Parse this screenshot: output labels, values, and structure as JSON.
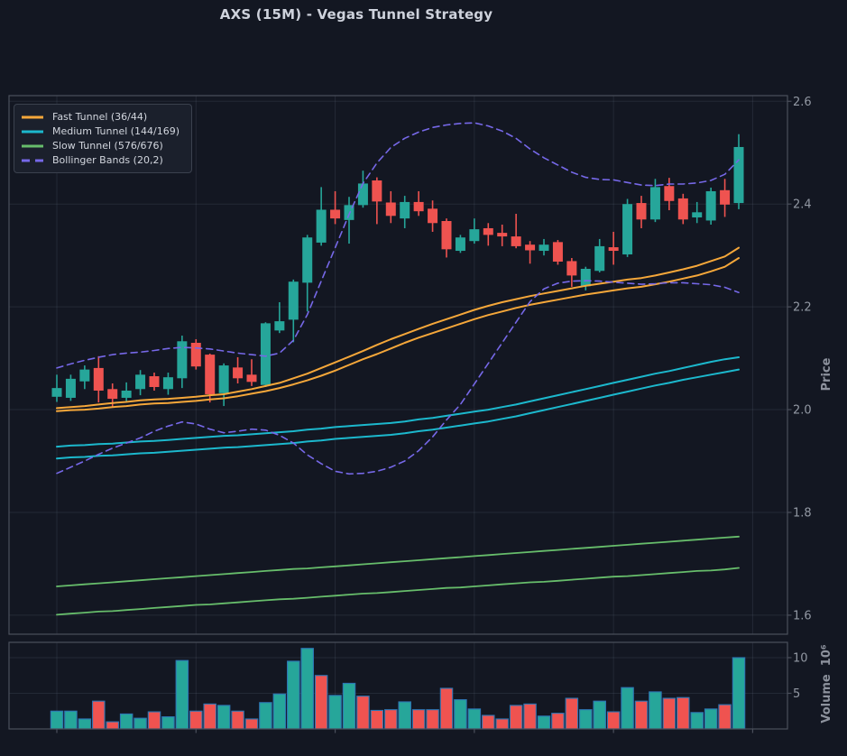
{
  "title": "AXS (15M) - Vegas Tunnel Strategy",
  "legend": {
    "items": [
      {
        "label": "Fast Tunnel (36/44)",
        "color": "#f5a73a",
        "dashed": false
      },
      {
        "label": "Medium Tunnel (144/169)",
        "color": "#1cb8cd",
        "dashed": false
      },
      {
        "label": "Slow Tunnel (576/676)",
        "color": "#67bd6b",
        "dashed": false
      },
      {
        "label": "Bollinger Bands (20,2)",
        "color": "#7668e8",
        "dashed": true
      }
    ]
  },
  "price_axis": {
    "label": "Price",
    "tick_labels": [
      "2.6",
      "2.4",
      "2.2",
      "2.0",
      "1.8",
      "1.6"
    ],
    "tick_values": [
      2.6,
      2.4,
      2.2,
      2.0,
      1.8,
      1.6
    ]
  },
  "volume_axis": {
    "label": "Volume",
    "scale_label": "10⁶",
    "tick_labels": [
      "10",
      "5"
    ],
    "tick_values": [
      10,
      5
    ]
  },
  "colors": {
    "background": "#131722",
    "panel_border": "#4b505c",
    "grid": "rgba(125,135,155,0.16)",
    "tick_text": "#9298a3",
    "title_text": "#ced2dc",
    "up": "#26a69a",
    "down": "#ef5350",
    "volume_edge": "#2d76b5",
    "fast_tunnel": "#f5a73a",
    "medium_tunnel": "#1cb8cd",
    "slow_tunnel": "#67bd6b",
    "bollinger": "#7668e8"
  },
  "chart_data": {
    "type": "candlestick",
    "title": "AXS (15M) - Vegas Tunnel Strategy",
    "symbol": "AXS",
    "timeframe": "15M",
    "strategy": "Vegas Tunnel Strategy",
    "price_ylim": [
      1.563,
      2.611
    ],
    "volume_ylim": [
      0,
      12.15
    ],
    "volume_unit": 1000000,
    "x_tick_indices": [
      0,
      10,
      20,
      30,
      40,
      50
    ],
    "grid": true,
    "legend_position": "upper left",
    "candles_note": "each candle: [open, high, low, close, volume_millions, volume_bar_color(u=teal,d=red)]",
    "candles": [
      [
        2.025,
        2.068,
        2.015,
        2.042,
        2.5,
        "u"
      ],
      [
        2.023,
        2.068,
        2.017,
        2.06,
        2.5,
        "u"
      ],
      [
        2.055,
        2.086,
        2.04,
        2.078,
        1.4,
        "u"
      ],
      [
        2.081,
        2.104,
        2.014,
        2.037,
        3.9,
        "d"
      ],
      [
        2.04,
        2.051,
        2.005,
        2.021,
        1.0,
        "d"
      ],
      [
        2.023,
        2.053,
        2.014,
        2.037,
        2.1,
        "u"
      ],
      [
        2.04,
        2.077,
        2.028,
        2.068,
        1.5,
        "u"
      ],
      [
        2.065,
        2.072,
        2.037,
        2.044,
        2.4,
        "d"
      ],
      [
        2.04,
        2.072,
        2.029,
        2.063,
        1.7,
        "u"
      ],
      [
        2.061,
        2.144,
        2.042,
        2.133,
        9.6,
        "u"
      ],
      [
        2.13,
        2.137,
        2.078,
        2.084,
        2.5,
        "d"
      ],
      [
        2.107,
        2.109,
        2.014,
        2.03,
        3.5,
        "d"
      ],
      [
        2.032,
        2.09,
        2.007,
        2.086,
        3.3,
        "u"
      ],
      [
        2.082,
        2.102,
        2.051,
        2.061,
        2.5,
        "d"
      ],
      [
        2.068,
        2.098,
        2.046,
        2.054,
        1.4,
        "d"
      ],
      [
        2.048,
        2.17,
        2.044,
        2.168,
        3.7,
        "u"
      ],
      [
        2.154,
        2.209,
        2.149,
        2.172,
        4.9,
        "u"
      ],
      [
        2.175,
        2.253,
        2.131,
        2.249,
        9.5,
        "u"
      ],
      [
        2.247,
        2.34,
        2.191,
        2.335,
        11.3,
        "u"
      ],
      [
        2.325,
        2.433,
        2.319,
        2.389,
        7.5,
        "d"
      ],
      [
        2.389,
        2.425,
        2.361,
        2.372,
        4.7,
        "u"
      ],
      [
        2.369,
        2.414,
        2.323,
        2.398,
        6.4,
        "u"
      ],
      [
        2.398,
        2.465,
        2.393,
        2.44,
        4.6,
        "d"
      ],
      [
        2.446,
        2.452,
        2.361,
        2.405,
        2.6,
        "d"
      ],
      [
        2.403,
        2.425,
        2.363,
        2.377,
        2.7,
        "d"
      ],
      [
        2.372,
        2.416,
        2.353,
        2.404,
        3.8,
        "u"
      ],
      [
        2.404,
        2.425,
        2.377,
        2.386,
        2.7,
        "d"
      ],
      [
        2.391,
        2.407,
        2.346,
        2.363,
        2.7,
        "d"
      ],
      [
        2.367,
        2.372,
        2.296,
        2.312,
        5.7,
        "d"
      ],
      [
        2.309,
        2.34,
        2.305,
        2.335,
        4.1,
        "u"
      ],
      [
        2.328,
        2.372,
        2.323,
        2.351,
        2.8,
        "u"
      ],
      [
        2.353,
        2.363,
        2.319,
        2.34,
        1.9,
        "d"
      ],
      [
        2.344,
        2.36,
        2.318,
        2.337,
        1.4,
        "d"
      ],
      [
        2.337,
        2.381,
        2.314,
        2.318,
        3.3,
        "d"
      ],
      [
        2.321,
        2.328,
        2.284,
        2.31,
        3.5,
        "d"
      ],
      [
        2.309,
        2.332,
        2.3,
        2.321,
        1.8,
        "u"
      ],
      [
        2.326,
        2.33,
        2.282,
        2.288,
        2.2,
        "d"
      ],
      [
        2.289,
        2.295,
        2.239,
        2.261,
        4.3,
        "d"
      ],
      [
        2.24,
        2.278,
        2.232,
        2.274,
        2.7,
        "u"
      ],
      [
        2.27,
        2.332,
        2.267,
        2.318,
        3.9,
        "u"
      ],
      [
        2.316,
        2.346,
        2.282,
        2.309,
        2.4,
        "d"
      ],
      [
        2.302,
        2.41,
        2.297,
        2.4,
        5.8,
        "u"
      ],
      [
        2.402,
        2.416,
        2.353,
        2.37,
        3.9,
        "d"
      ],
      [
        2.37,
        2.449,
        2.365,
        2.433,
        5.2,
        "u"
      ],
      [
        2.435,
        2.451,
        2.388,
        2.406,
        4.3,
        "d"
      ],
      [
        2.411,
        2.42,
        2.361,
        2.37,
        4.4,
        "d"
      ],
      [
        2.374,
        2.404,
        2.363,
        2.384,
        2.3,
        "u"
      ],
      [
        2.368,
        2.432,
        2.36,
        2.425,
        2.8,
        "u"
      ],
      [
        2.427,
        2.449,
        2.375,
        2.399,
        3.4,
        "d"
      ],
      [
        2.402,
        2.536,
        2.39,
        2.511,
        10.0,
        "u"
      ]
    ],
    "overlays": {
      "fast_upper": [
        2.003,
        2.005,
        2.007,
        2.01,
        2.013,
        2.015,
        2.018,
        2.02,
        2.021,
        2.023,
        2.025,
        2.028,
        2.03,
        2.035,
        2.04,
        2.046,
        2.052,
        2.061,
        2.07,
        2.081,
        2.092,
        2.103,
        2.114,
        2.126,
        2.137,
        2.147,
        2.157,
        2.167,
        2.176,
        2.185,
        2.194,
        2.202,
        2.209,
        2.215,
        2.221,
        2.226,
        2.231,
        2.236,
        2.241,
        2.245,
        2.249,
        2.253,
        2.256,
        2.261,
        2.267,
        2.273,
        2.28,
        2.289,
        2.298,
        2.315
      ],
      "fast_lower": [
        1.997,
        1.999,
        2.0,
        2.002,
        2.005,
        2.007,
        2.01,
        2.012,
        2.013,
        2.015,
        2.017,
        2.02,
        2.022,
        2.026,
        2.031,
        2.036,
        2.042,
        2.049,
        2.057,
        2.066,
        2.076,
        2.087,
        2.098,
        2.108,
        2.119,
        2.13,
        2.14,
        2.149,
        2.158,
        2.167,
        2.176,
        2.184,
        2.191,
        2.198,
        2.204,
        2.209,
        2.214,
        2.219,
        2.224,
        2.228,
        2.232,
        2.236,
        2.239,
        2.244,
        2.249,
        2.255,
        2.261,
        2.269,
        2.278,
        2.295
      ],
      "medium_upper": [
        1.928,
        1.93,
        1.931,
        1.933,
        1.934,
        1.936,
        1.938,
        1.939,
        1.941,
        1.943,
        1.945,
        1.947,
        1.949,
        1.95,
        1.952,
        1.954,
        1.956,
        1.958,
        1.961,
        1.963,
        1.966,
        1.968,
        1.97,
        1.972,
        1.974,
        1.977,
        1.981,
        1.984,
        1.988,
        1.992,
        1.996,
        2.0,
        2.005,
        2.01,
        2.016,
        2.022,
        2.028,
        2.034,
        2.04,
        2.046,
        2.052,
        2.058,
        2.064,
        2.07,
        2.075,
        2.081,
        2.087,
        2.093,
        2.098,
        2.102
      ],
      "medium_lower": [
        1.905,
        1.907,
        1.908,
        1.91,
        1.911,
        1.913,
        1.915,
        1.916,
        1.918,
        1.92,
        1.922,
        1.924,
        1.926,
        1.927,
        1.929,
        1.931,
        1.933,
        1.935,
        1.938,
        1.94,
        1.943,
        1.945,
        1.947,
        1.949,
        1.951,
        1.954,
        1.958,
        1.961,
        1.965,
        1.969,
        1.973,
        1.977,
        1.982,
        1.987,
        1.993,
        1.999,
        2.005,
        2.011,
        2.017,
        2.023,
        2.029,
        2.035,
        2.041,
        2.047,
        2.052,
        2.058,
        2.063,
        2.068,
        2.073,
        2.078
      ],
      "slow_upper": [
        1.656,
        1.658,
        1.66,
        1.662,
        1.664,
        1.666,
        1.668,
        1.67,
        1.672,
        1.674,
        1.676,
        1.678,
        1.68,
        1.682,
        1.684,
        1.686,
        1.688,
        1.69,
        1.691,
        1.693,
        1.695,
        1.697,
        1.699,
        1.701,
        1.703,
        1.705,
        1.707,
        1.709,
        1.711,
        1.713,
        1.715,
        1.717,
        1.719,
        1.721,
        1.723,
        1.725,
        1.727,
        1.729,
        1.731,
        1.733,
        1.735,
        1.737,
        1.739,
        1.741,
        1.743,
        1.745,
        1.747,
        1.749,
        1.751,
        1.753
      ],
      "slow_lower": [
        1.601,
        1.603,
        1.605,
        1.607,
        1.608,
        1.61,
        1.612,
        1.614,
        1.616,
        1.618,
        1.62,
        1.621,
        1.623,
        1.625,
        1.627,
        1.629,
        1.631,
        1.632,
        1.634,
        1.636,
        1.638,
        1.64,
        1.642,
        1.643,
        1.645,
        1.647,
        1.649,
        1.651,
        1.653,
        1.654,
        1.656,
        1.658,
        1.66,
        1.662,
        1.664,
        1.665,
        1.667,
        1.669,
        1.671,
        1.673,
        1.675,
        1.676,
        1.678,
        1.68,
        1.682,
        1.684,
        1.686,
        1.687,
        1.689,
        1.692
      ],
      "bb_upper": [
        2.081,
        2.089,
        2.096,
        2.102,
        2.107,
        2.11,
        2.112,
        2.115,
        2.119,
        2.121,
        2.12,
        2.118,
        2.114,
        2.11,
        2.107,
        2.104,
        2.11,
        2.135,
        2.185,
        2.25,
        2.315,
        2.38,
        2.44,
        2.48,
        2.51,
        2.528,
        2.54,
        2.549,
        2.554,
        2.557,
        2.558,
        2.552,
        2.542,
        2.528,
        2.507,
        2.49,
        2.476,
        2.462,
        2.452,
        2.448,
        2.447,
        2.442,
        2.437,
        2.436,
        2.439,
        2.439,
        2.441,
        2.446,
        2.458,
        2.486
      ],
      "bb_lower": [
        1.876,
        1.888,
        1.9,
        1.913,
        1.925,
        1.935,
        1.945,
        1.958,
        1.968,
        1.976,
        1.972,
        1.962,
        1.955,
        1.958,
        1.962,
        1.96,
        1.95,
        1.935,
        1.912,
        1.895,
        1.88,
        1.875,
        1.876,
        1.88,
        1.888,
        1.9,
        1.92,
        1.947,
        1.98,
        2.01,
        2.05,
        2.09,
        2.13,
        2.17,
        2.21,
        2.235,
        2.246,
        2.25,
        2.251,
        2.25,
        2.248,
        2.246,
        2.244,
        2.245,
        2.247,
        2.247,
        2.245,
        2.243,
        2.238,
        2.228
      ]
    }
  }
}
